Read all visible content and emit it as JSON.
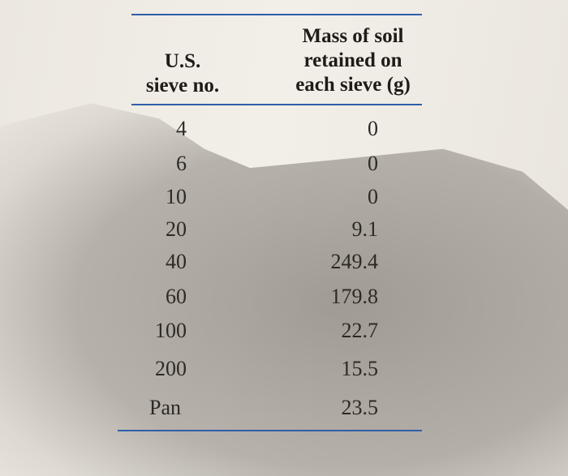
{
  "table": {
    "headers": {
      "sieve_line1": "U.S.",
      "sieve_line2": "sieve no.",
      "mass_line1": "Mass of soil",
      "mass_line2": "retained on",
      "mass_line3": "each sieve (g)"
    },
    "rows": [
      {
        "sieve": "4",
        "mass": "0"
      },
      {
        "sieve": "6",
        "mass": "0"
      },
      {
        "sieve": "10",
        "mass": "0"
      },
      {
        "sieve": "20",
        "mass": "9.1"
      },
      {
        "sieve": "40",
        "mass": "249.4"
      },
      {
        "sieve": "60",
        "mass": "179.8"
      },
      {
        "sieve": "100",
        "mass": "22.7"
      },
      {
        "sieve": "200",
        "mass": "15.5"
      },
      {
        "sieve": "Pan",
        "mass": "23.5"
      }
    ]
  }
}
